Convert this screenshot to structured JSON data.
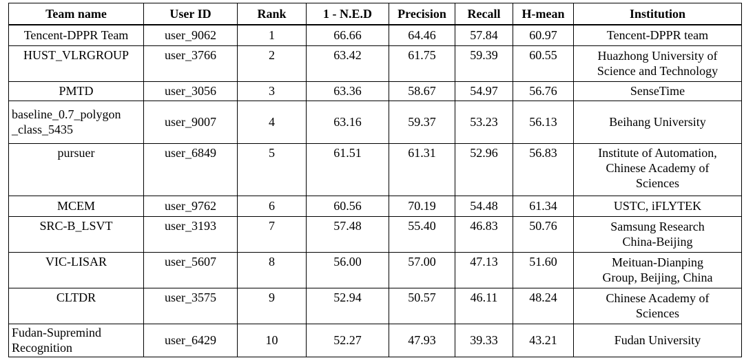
{
  "headers": [
    "Team name",
    "User ID",
    "Rank",
    "1 - N.E.D",
    "Precision",
    "Recall",
    "H-mean",
    "Institution"
  ],
  "rows": [
    {
      "team": [
        "Tencent-DPPR Team"
      ],
      "user": "user_9062",
      "rank": "1",
      "ned": "66.66",
      "precision": "64.46",
      "recall": "57.84",
      "hmean": "60.97",
      "institution": [
        "Tencent-DPPR team"
      ]
    },
    {
      "team": [
        "HUST_VLRGROUP"
      ],
      "user": "user_3766",
      "rank": "2",
      "ned": "63.42",
      "precision": "61.75",
      "recall": "59.39",
      "hmean": "60.55",
      "institution": [
        "Huazhong University of",
        "Science and Technology"
      ]
    },
    {
      "team": [
        "PMTD"
      ],
      "user": "user_3056",
      "rank": "3",
      "ned": "63.36",
      "precision": "58.67",
      "recall": "54.97",
      "hmean": "56.76",
      "institution": [
        "SenseTime"
      ]
    },
    {
      "team": [
        "baseline_0.7_polygon",
        "_class_5435"
      ],
      "user": "user_9007",
      "rank": "4",
      "ned": "63.16",
      "precision": "59.37",
      "recall": "53.23",
      "hmean": "56.13",
      "institution": [
        "Beihang University"
      ]
    },
    {
      "team": [
        "pursuer"
      ],
      "user": "user_6849",
      "rank": "5",
      "ned": "61.51",
      "precision": "61.31",
      "recall": "52.96",
      "hmean": "56.83",
      "institution": [
        "Institute of Automation,",
        "Chinese Academy of",
        "Sciences"
      ]
    },
    {
      "team": [
        "MCEM"
      ],
      "user": "user_9762",
      "rank": "6",
      "ned": "60.56",
      "precision": "70.19",
      "recall": "54.48",
      "hmean": "61.34",
      "institution": [
        "USTC, iFLYTEK"
      ]
    },
    {
      "team": [
        "SRC-B_LSVT"
      ],
      "user": "user_3193",
      "rank": "7",
      "ned": "57.48",
      "precision": "55.40",
      "recall": "46.83",
      "hmean": "50.76",
      "institution": [
        "Samsung Research",
        "China-Beijing"
      ]
    },
    {
      "team": [
        "VIC-LISAR"
      ],
      "user": "user_5607",
      "rank": "8",
      "ned": "56.00",
      "precision": "57.00",
      "recall": "47.13",
      "hmean": "51.60",
      "institution": [
        "Meituan-Dianping",
        "Group, Beijing, China"
      ]
    },
    {
      "team": [
        "CLTDR"
      ],
      "user": "user_3575",
      "rank": "9",
      "ned": "52.94",
      "precision": "50.57",
      "recall": "46.11",
      "hmean": "48.24",
      "institution": [
        "Chinese Academy of",
        "Sciences"
      ]
    },
    {
      "team": [
        "Fudan-Supremind",
        "Recognition"
      ],
      "user": "user_6429",
      "rank": "10",
      "ned": "52.27",
      "precision": "47.93",
      "recall": "39.33",
      "hmean": "43.21",
      "institution": [
        "Fudan University"
      ]
    }
  ]
}
